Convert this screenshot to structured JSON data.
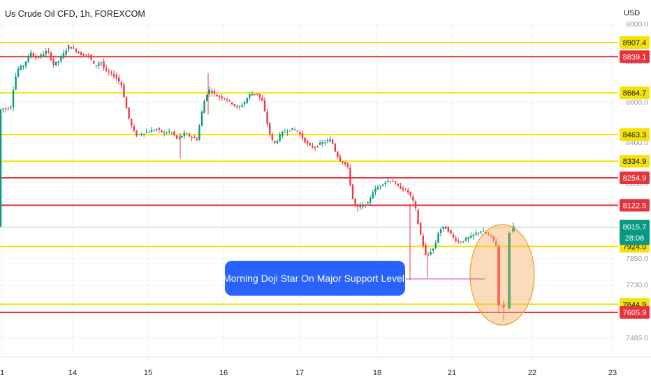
{
  "header": {
    "symbol_title": "Us Crude Oil CFD, 1h, FOREXCOM"
  },
  "price_axis": {
    "currency": "USD",
    "tick_labels": [
      "9000.0",
      "8800.0",
      "8600.0",
      "8400.0",
      "8200.0",
      "7850.0",
      "7730.0",
      "7485.0"
    ]
  },
  "last_price": {
    "value": "8015.7",
    "countdown": "28:06",
    "color": "#089981"
  },
  "annotation": {
    "label": "Morning Doji Star On Major Support Level.",
    "color": "#2962ff",
    "highlight_fill": "#f7b267"
  },
  "chart_data": {
    "type": "candlestick",
    "title": "Us Crude Oil CFD, 1h, FOREXCOM",
    "y_unit": "USD",
    "x_tick_labels": [
      "1",
      "14",
      "15",
      "16",
      "17",
      "18",
      "21",
      "22",
      "23"
    ],
    "ylim": [
      7440,
      9060
    ],
    "grid": true,
    "colors": {
      "up": "#089981",
      "down": "#f23645",
      "support": "#f5e20b",
      "resistance": "#e6333d"
    },
    "levels": [
      {
        "label": "8907.4",
        "value": 8907.4,
        "kind": "support"
      },
      {
        "label": "8839.1",
        "value": 8839.1,
        "kind": "resistance"
      },
      {
        "label": "8664.7",
        "value": 8664.7,
        "kind": "support"
      },
      {
        "label": "8463.3",
        "value": 8463.3,
        "kind": "support"
      },
      {
        "label": "8334.9",
        "value": 8334.9,
        "kind": "support"
      },
      {
        "label": "8254.9",
        "value": 8254.9,
        "kind": "resistance"
      },
      {
        "label": "8122.5",
        "value": 8122.5,
        "kind": "resistance"
      },
      {
        "label": "7924.0",
        "value": 7924.0,
        "kind": "support"
      },
      {
        "label": "7644.9",
        "value": 7644.9,
        "kind": "support"
      },
      {
        "label": "7605.9",
        "value": 7605.9,
        "kind": "resistance"
      }
    ],
    "path": [
      [
        0,
        8580
      ],
      [
        6,
        8590
      ],
      [
        12,
        8585
      ],
      [
        18,
        8600
      ],
      [
        22,
        8720
      ],
      [
        28,
        8780
      ],
      [
        36,
        8800
      ],
      [
        46,
        8860
      ],
      [
        54,
        8830
      ],
      [
        62,
        8850
      ],
      [
        70,
        8870
      ],
      [
        78,
        8800
      ],
      [
        86,
        8820
      ],
      [
        94,
        8860
      ],
      [
        100,
        8890
      ],
      [
        110,
        8870
      ],
      [
        118,
        8850
      ],
      [
        128,
        8850
      ],
      [
        138,
        8790
      ],
      [
        146,
        8820
      ],
      [
        152,
        8770
      ],
      [
        160,
        8760
      ],
      [
        168,
        8740
      ],
      [
        176,
        8700
      ],
      [
        182,
        8600
      ],
      [
        188,
        8520
      ],
      [
        196,
        8460
      ],
      [
        206,
        8470
      ],
      [
        216,
        8480
      ],
      [
        226,
        8490
      ],
      [
        236,
        8470
      ],
      [
        246,
        8480
      ],
      [
        256,
        8440
      ],
      [
        266,
        8470
      ],
      [
        276,
        8450
      ],
      [
        284,
        8440
      ],
      [
        290,
        8560
      ],
      [
        296,
        8650
      ],
      [
        302,
        8680
      ],
      [
        312,
        8650
      ],
      [
        322,
        8640
      ],
      [
        332,
        8620
      ],
      [
        342,
        8590
      ],
      [
        352,
        8620
      ],
      [
        360,
        8660
      ],
      [
        370,
        8660
      ],
      [
        378,
        8620
      ],
      [
        384,
        8520
      ],
      [
        390,
        8440
      ],
      [
        396,
        8420
      ],
      [
        404,
        8470
      ],
      [
        412,
        8480
      ],
      [
        420,
        8490
      ],
      [
        428,
        8480
      ],
      [
        436,
        8440
      ],
      [
        444,
        8410
      ],
      [
        452,
        8400
      ],
      [
        460,
        8420
      ],
      [
        468,
        8430
      ],
      [
        476,
        8440
      ],
      [
        482,
        8380
      ],
      [
        488,
        8340
      ],
      [
        494,
        8330
      ],
      [
        500,
        8300
      ],
      [
        506,
        8160
      ],
      [
        512,
        8110
      ],
      [
        520,
        8120
      ],
      [
        528,
        8130
      ],
      [
        536,
        8190
      ],
      [
        546,
        8220
      ],
      [
        556,
        8240
      ],
      [
        564,
        8240
      ],
      [
        572,
        8210
      ],
      [
        580,
        8200
      ],
      [
        588,
        8180
      ],
      [
        596,
        8120
      ],
      [
        600,
        8040
      ],
      [
        606,
        7950
      ],
      [
        612,
        7870
      ],
      [
        618,
        7900
      ],
      [
        624,
        7920
      ],
      [
        630,
        8000
      ],
      [
        638,
        8020
      ],
      [
        646,
        7990
      ],
      [
        652,
        7960
      ],
      [
        660,
        7940
      ],
      [
        668,
        7960
      ],
      [
        676,
        7970
      ],
      [
        684,
        7990
      ],
      [
        692,
        8000
      ],
      [
        700,
        7980
      ],
      [
        706,
        7970
      ],
      [
        712,
        7930
      ],
      [
        716,
        7660
      ],
      [
        722,
        7620
      ],
      [
        728,
        7640
      ],
      [
        734,
        8020
      ]
    ],
    "special_candles": [
      {
        "i": 714,
        "o": 7924,
        "c": 7640,
        "h": 7935,
        "l": 7600
      },
      {
        "i": 721,
        "o": 7640,
        "c": 7630,
        "h": 7660,
        "l": 7565
      },
      {
        "i": 729,
        "o": 7625,
        "c": 7990,
        "h": 8000,
        "l": 7615
      },
      {
        "i": 735,
        "o": 7995,
        "c": 8020,
        "h": 8040,
        "l": 7985
      }
    ]
  }
}
